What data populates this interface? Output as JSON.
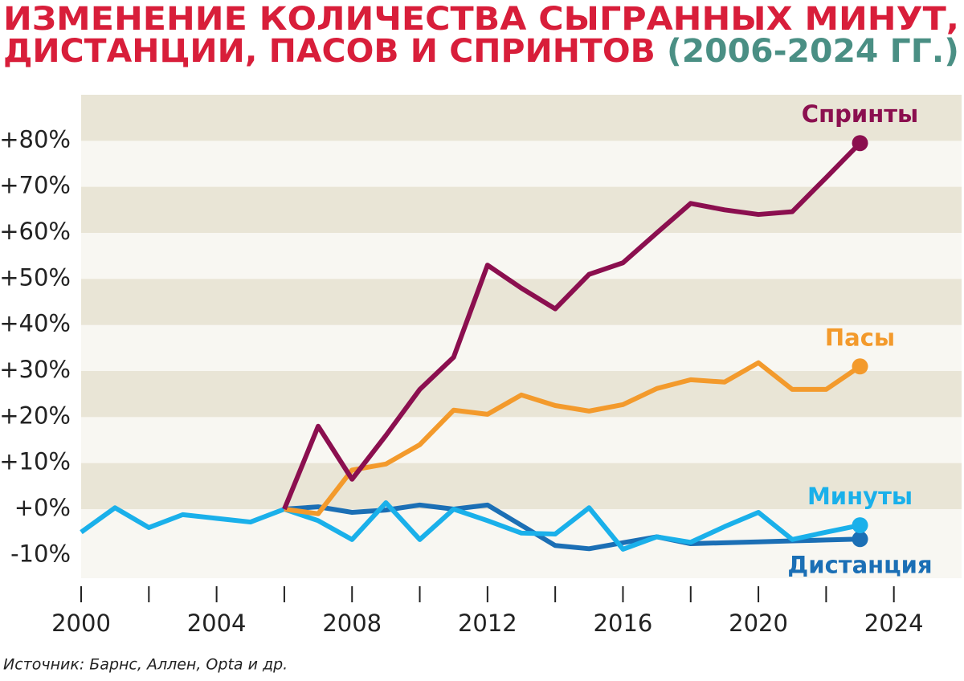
{
  "chart_data": {
    "type": "line",
    "title": [
      "ИЗМЕНЕНИЕ КОЛИЧЕСТВА СЫГРАННЫХ МИНУТ,",
      "ДИСТАНЦИИ, ПАСОВ И СПРИНТОВ"
    ],
    "subtitle": "(2006-2024 ГГ.)",
    "source": "Источник: Барнс, Аллен, Opta и др.",
    "x": [
      2000,
      2001,
      2002,
      2003,
      2004,
      2005,
      2006,
      2007,
      2008,
      2009,
      2010,
      2011,
      2012,
      2013,
      2014,
      2015,
      2016,
      2017,
      2018,
      2019,
      2020,
      2021,
      2022,
      2023
    ],
    "series": [
      {
        "name": "Спринты",
        "color": "#8b0f4f",
        "values": [
          null,
          null,
          null,
          null,
          null,
          null,
          0,
          18,
          6.5,
          16,
          26,
          33,
          53,
          48,
          43.5,
          51,
          53.5,
          60,
          66.4,
          65,
          64,
          64.6,
          72,
          79.5
        ]
      },
      {
        "name": "Пасы",
        "color": "#f39a2c",
        "values": [
          null,
          null,
          null,
          null,
          null,
          null,
          0,
          -1,
          8.5,
          9.8,
          14,
          21.5,
          20.6,
          24.8,
          22.5,
          21.3,
          22.7,
          26.2,
          28.1,
          27.6,
          31.8,
          26,
          26,
          31
        ]
      },
      {
        "name": "Минуты",
        "color": "#1ab0ea",
        "values": [
          -5,
          0.3,
          -4,
          -1.2,
          -2,
          -2.8,
          0,
          -2.5,
          -6.6,
          1.4,
          -6.6,
          0,
          -2.5,
          -5.2,
          -5.4,
          0.3,
          -8.7,
          -6,
          -7.2,
          -3.8,
          -0.7,
          -6.6,
          -5,
          -3.5
        ]
      },
      {
        "name": "Дистанция",
        "color": "#1b6fb5",
        "values": [
          null,
          null,
          null,
          null,
          null,
          null,
          0,
          0.5,
          -0.7,
          -0.2,
          0.9,
          0,
          0.9,
          -3.5,
          -7.9,
          -8.6,
          -7.3,
          -6,
          -7.5,
          -7.3,
          -7.1,
          -6.9,
          -6.7,
          -6.5
        ]
      }
    ],
    "xlim": [
      2000,
      2026
    ],
    "xticks": [
      2000,
      2004,
      2008,
      2012,
      2016,
      2020,
      2024
    ],
    "xminor_ticks": [
      2002,
      2006,
      2010,
      2014,
      2018,
      2022
    ],
    "ylim": [
      -15,
      90
    ],
    "yticks": [
      {
        "value": -10,
        "label": "-10%"
      },
      {
        "value": 0,
        "label": "+0%"
      },
      {
        "value": 10,
        "label": "+10%"
      },
      {
        "value": 20,
        "label": "+20%"
      },
      {
        "value": 30,
        "label": "+30%"
      },
      {
        "value": 40,
        "label": "+40%"
      },
      {
        "value": 50,
        "label": "+50%"
      },
      {
        "value": 60,
        "label": "+60%"
      },
      {
        "value": 70,
        "label": "+70%"
      },
      {
        "value": 80,
        "label": "+80%"
      }
    ],
    "stripes": [
      "#e9e5d6",
      "#f8f7f2"
    ]
  }
}
